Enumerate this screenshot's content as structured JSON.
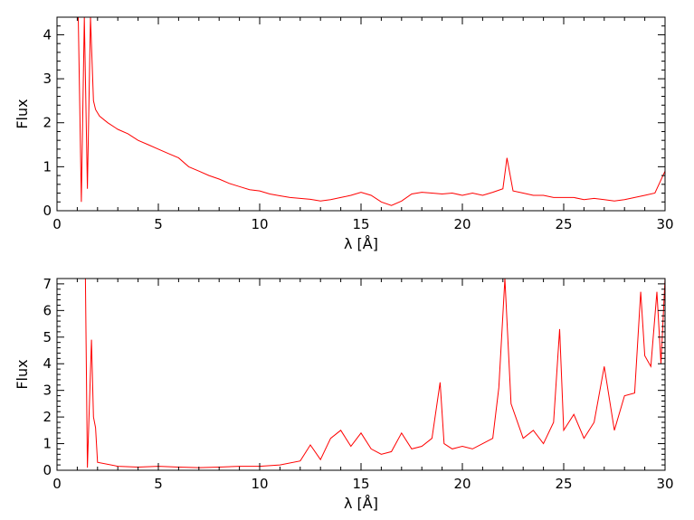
{
  "chart_data": [
    {
      "type": "line",
      "xlabel": "λ [Å]",
      "ylabel": "Flux",
      "xlim": [
        0,
        30
      ],
      "ylim": [
        0,
        4.4
      ],
      "x_ticks": [
        0,
        5,
        10,
        15,
        20,
        25,
        30
      ],
      "y_ticks": [
        0,
        1,
        2,
        3,
        4
      ],
      "series_color": "#ff0000",
      "grid": false,
      "series": [
        {
          "x": [
            1.05,
            1.2,
            1.35,
            1.5,
            1.65,
            1.8,
            1.9,
            2.1,
            2.5,
            3,
            3.5,
            4,
            4.5,
            5,
            5.5,
            6,
            6.5,
            7,
            7.5,
            8,
            8.5,
            9,
            9.5,
            10,
            10.5,
            11,
            11.5,
            12,
            12.5,
            13,
            13.5,
            14,
            14.5,
            15,
            15.5,
            16,
            16.5,
            17,
            17.5,
            18,
            18.5,
            19,
            19.5,
            20,
            20.5,
            21,
            21.5,
            22,
            22.2,
            22.5,
            23,
            23.5,
            24,
            24.5,
            25,
            25.5,
            26,
            26.5,
            27,
            27.5,
            28,
            28.5,
            29,
            29.5,
            30
          ],
          "y": [
            4.4,
            0.2,
            4.4,
            0.5,
            4.4,
            2.5,
            2.3,
            2.15,
            2.0,
            1.85,
            1.75,
            1.6,
            1.5,
            1.4,
            1.3,
            1.2,
            1.0,
            0.9,
            0.8,
            0.72,
            0.62,
            0.55,
            0.48,
            0.45,
            0.38,
            0.34,
            0.3,
            0.28,
            0.26,
            0.22,
            0.25,
            0.3,
            0.35,
            0.42,
            0.35,
            0.2,
            0.12,
            0.22,
            0.38,
            0.42,
            0.4,
            0.38,
            0.4,
            0.35,
            0.4,
            0.35,
            0.42,
            0.5,
            1.2,
            0.45,
            0.4,
            0.35,
            0.35,
            0.3,
            0.3,
            0.3,
            0.25,
            0.28,
            0.25,
            0.22,
            0.25,
            0.3,
            0.35,
            0.4,
            0.9
          ]
        }
      ]
    },
    {
      "type": "line",
      "xlabel": "λ [Å]",
      "ylabel": "Flux",
      "xlim": [
        0,
        30
      ],
      "ylim": [
        0,
        7.2
      ],
      "x_ticks": [
        0,
        5,
        10,
        15,
        20,
        25,
        30
      ],
      "y_ticks": [
        0,
        1,
        2,
        3,
        4,
        5,
        6,
        7
      ],
      "series_color": "#ff0000",
      "grid": false,
      "series": [
        {
          "x": [
            1.2,
            1.3,
            1.4,
            1.5,
            1.7,
            1.8,
            1.9,
            2,
            3,
            4,
            5,
            6,
            7,
            8,
            9,
            10,
            11,
            12,
            12.5,
            13,
            13.5,
            14,
            14.5,
            15,
            15.5,
            16,
            16.5,
            17,
            17.5,
            18,
            18.5,
            18.9,
            19.1,
            19.5,
            20,
            20.5,
            21,
            21.5,
            21.8,
            22.1,
            22.4,
            23,
            23.5,
            24,
            24.5,
            24.8,
            25,
            25.5,
            26,
            26.5,
            27,
            27.5,
            28,
            28.5,
            28.8,
            29,
            29.3,
            29.6,
            29.8,
            30
          ],
          "y": [
            7.2,
            7.2,
            7.2,
            0.1,
            4.9,
            2.0,
            1.6,
            0.3,
            0.15,
            0.12,
            0.15,
            0.12,
            0.1,
            0.12,
            0.15,
            0.15,
            0.2,
            0.35,
            0.95,
            0.4,
            1.2,
            1.5,
            0.9,
            1.4,
            0.8,
            0.6,
            0.7,
            1.4,
            0.8,
            0.9,
            1.2,
            3.3,
            1.0,
            0.8,
            0.9,
            0.8,
            1.0,
            1.2,
            3.1,
            7.2,
            2.5,
            1.2,
            1.5,
            1.0,
            1.8,
            5.3,
            1.5,
            2.1,
            1.2,
            1.8,
            3.9,
            1.5,
            2.8,
            2.9,
            6.7,
            4.3,
            3.9,
            6.7,
            4.0,
            7.2
          ]
        }
      ]
    }
  ]
}
